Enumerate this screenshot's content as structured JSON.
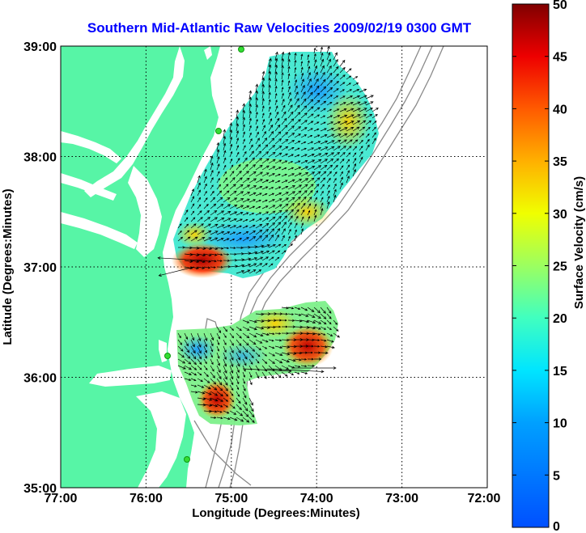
{
  "title": "Southern Mid-Atlantic Raw Velocities 2009/02/19 0300 GMT",
  "x_axis": {
    "label": "Longitude (Degrees:Minutes)",
    "ticks": [
      "77:00",
      "76:00",
      "75:00",
      "74:00",
      "73:00",
      "72:00"
    ]
  },
  "y_axis": {
    "label": "Latitude (Degrees:Minutes)",
    "ticks": [
      "39:00",
      "38:00",
      "37:00",
      "36:00",
      "35:00"
    ]
  },
  "colorbar": {
    "label": "Surface Velocity (cm/s)",
    "ticks": [
      "50",
      "45",
      "40",
      "35",
      "30",
      "25",
      "20",
      "15",
      "10",
      "5",
      "0"
    ],
    "min": 0,
    "max": 50,
    "colormap": "jet"
  },
  "map_extent": {
    "lon_min": -77.0,
    "lon_max": -72.0,
    "lat_min": 35.0,
    "lat_max": 39.0
  },
  "colors": {
    "land": "#57f5a6",
    "water": "#ffffff",
    "station": "#33dd33",
    "bathymetry": "#8a8a8a",
    "title": "#0000ff"
  },
  "gridlines": true,
  "velocity_field": {
    "north_region": [
      {
        "lon": -74.55,
        "lat": 38.75,
        "speed": 12
      },
      {
        "lon": -74.2,
        "lat": 38.7,
        "speed": 9
      },
      {
        "lon": -73.85,
        "lat": 38.6,
        "speed": 13
      },
      {
        "lon": -74.9,
        "lat": 38.35,
        "speed": 20
      },
      {
        "lon": -74.5,
        "lat": 38.35,
        "speed": 17
      },
      {
        "lon": -74.0,
        "lat": 38.35,
        "speed": 18
      },
      {
        "lon": -73.7,
        "lat": 38.35,
        "speed": 28
      },
      {
        "lon": -75.1,
        "lat": 37.95,
        "speed": 19
      },
      {
        "lon": -74.7,
        "lat": 37.95,
        "speed": 16
      },
      {
        "lon": -74.3,
        "lat": 37.95,
        "speed": 18
      },
      {
        "lon": -73.95,
        "lat": 37.9,
        "speed": 12
      },
      {
        "lon": -75.35,
        "lat": 37.6,
        "speed": 22
      },
      {
        "lon": -74.95,
        "lat": 37.55,
        "speed": 14
      },
      {
        "lon": -74.55,
        "lat": 37.55,
        "speed": 15
      },
      {
        "lon": -74.15,
        "lat": 37.6,
        "speed": 28
      },
      {
        "lon": -75.45,
        "lat": 37.2,
        "speed": 30
      },
      {
        "lon": -75.1,
        "lat": 37.25,
        "speed": 12
      },
      {
        "lon": -74.7,
        "lat": 37.25,
        "speed": 20
      },
      {
        "lon": -75.4,
        "lat": 37.0,
        "speed": 47
      },
      {
        "lon": -75.1,
        "lat": 36.95,
        "speed": 38
      }
    ],
    "south_region": [
      {
        "lon": -75.5,
        "lat": 36.25,
        "speed": 13
      },
      {
        "lon": -75.15,
        "lat": 36.25,
        "speed": 17
      },
      {
        "lon": -74.8,
        "lat": 36.3,
        "speed": 16
      },
      {
        "lon": -74.45,
        "lat": 36.35,
        "speed": 30
      },
      {
        "lon": -74.3,
        "lat": 36.2,
        "speed": 42
      },
      {
        "lon": -74.6,
        "lat": 36.5,
        "speed": 22
      },
      {
        "lon": -75.35,
        "lat": 35.9,
        "speed": 22
      },
      {
        "lon": -75.0,
        "lat": 35.95,
        "speed": 20
      },
      {
        "lon": -75.2,
        "lat": 35.7,
        "speed": 40
      },
      {
        "lon": -74.95,
        "lat": 35.7,
        "speed": 25
      }
    ]
  }
}
